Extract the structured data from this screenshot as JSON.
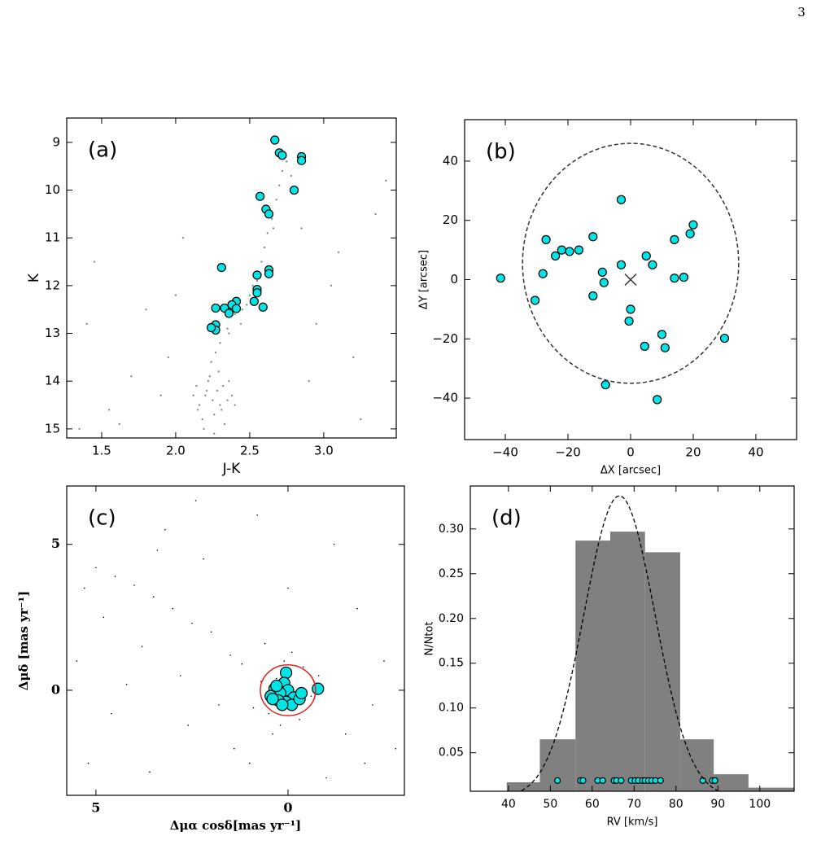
{
  "page_number": "3",
  "chart_data": [
    {
      "type": "scatter",
      "panel_label": "(a)",
      "xlabel": "J-K",
      "ylabel": "K",
      "xlim": [
        1.264,
        3.49
      ],
      "ylim": [
        15.19,
        8.49
      ],
      "xticks": [
        1.5,
        {
          "value": 2.0,
          "label": "2.0"
        },
        2.5,
        {
          "value": 3.0,
          "label": "3.0"
        }
      ],
      "yticks": [
        9,
        10,
        11,
        12,
        13,
        14,
        15
      ],
      "series": [
        {
          "color": "#8a8a8a",
          "x": [
            2.25,
            2.2,
            2.3,
            2.28,
            2.15,
            2.35,
            2.22,
            2.18,
            2.32,
            2.26,
            2.4,
            2.12,
            2.24,
            2.29,
            2.19,
            2.33,
            2.27,
            2.21,
            2.38,
            2.16,
            2.23,
            2.31,
            2.36,
            2.26,
            2.14,
            2.3,
            2.35,
            2.4,
            2.45,
            2.5,
            2.55,
            2.58,
            2.6,
            2.62,
            2.65,
            2.68,
            2.7,
            2.72,
            2.75,
            2.78,
            2.66,
            2.52,
            2.44,
            2.48,
            2.36,
            1.35,
            1.45,
            1.62,
            1.8,
            1.95,
            2.05,
            3.05,
            3.2,
            3.35,
            3.42,
            2.9,
            2.95,
            1.7,
            1.55,
            3.1,
            2.0,
            1.9,
            3.25,
            2.85,
            1.4
          ],
          "values": [
            14.4,
            14.3,
            14.5,
            14.2,
            14.6,
            14.4,
            14.0,
            14.8,
            14.1,
            14.7,
            14.5,
            14.3,
            13.6,
            13.8,
            15.0,
            14.9,
            13.4,
            14.2,
            14.3,
            14.5,
            13.9,
            14.6,
            14.0,
            15.1,
            14.1,
            13.2,
            12.9,
            12.6,
            12.5,
            12.2,
            11.9,
            11.5,
            11.2,
            10.9,
            10.6,
            10.2,
            9.9,
            9.6,
            9.4,
            9.7,
            10.8,
            12.0,
            12.8,
            12.4,
            13.0,
            15.0,
            11.5,
            14.9,
            12.5,
            13.5,
            11.0,
            12.0,
            13.5,
            10.5,
            9.8,
            14.0,
            12.8,
            13.9,
            14.6,
            11.3,
            12.2,
            14.3,
            14.8,
            10.8,
            12.8
          ]
        },
        {
          "color": "#00e5e5",
          "x": [
            2.67,
            2.7,
            2.72,
            2.85,
            2.85,
            2.8,
            2.57,
            2.61,
            2.63,
            2.31,
            2.63,
            2.63,
            2.55,
            2.55,
            2.55,
            2.53,
            2.59,
            2.41,
            2.38,
            2.41,
            2.33,
            2.36,
            2.27,
            2.27,
            2.27,
            2.24
          ],
          "values": [
            8.95,
            9.22,
            9.27,
            9.3,
            9.38,
            10.0,
            10.13,
            10.4,
            10.5,
            11.62,
            11.67,
            11.75,
            11.78,
            12.08,
            12.15,
            12.33,
            12.45,
            12.33,
            12.4,
            12.48,
            12.47,
            12.58,
            12.47,
            12.82,
            12.93,
            12.88
          ]
        }
      ]
    },
    {
      "type": "scatter",
      "panel_label": "(b)",
      "xlabel": "ΔX [arcsec]",
      "ylabel": "ΔY [arcsec]",
      "xlim": [
        -53,
        53
      ],
      "ylim": [
        -54,
        54
      ],
      "xticks": [
        {
          "value": -40,
          "label": "−40"
        },
        {
          "value": -20,
          "label": "−20"
        },
        0,
        20,
        40
      ],
      "yticks": [
        {
          "value": -40,
          "label": "−40"
        },
        {
          "value": -20,
          "label": "−20"
        },
        0,
        20,
        40
      ],
      "ellipse": {
        "center": [
          0,
          5.5
        ],
        "radius": [
          34.5,
          40.5
        ],
        "color": "#333333"
      },
      "cross": [
        0,
        0
      ],
      "series": [
        {
          "color": "#00e5e5",
          "x": [
            -41.5,
            -30.5,
            -27,
            -28,
            -24,
            -22,
            -19.5,
            -16.5,
            -12,
            -9,
            -8.5,
            -12,
            -8,
            -3,
            -3,
            0,
            -0.5,
            5,
            7,
            4.5,
            10,
            11,
            14,
            14,
            17,
            19,
            20,
            30,
            8.5
          ],
          "values": [
            0.5,
            -7,
            13.5,
            2,
            8,
            10,
            9.5,
            10,
            14.5,
            2.5,
            -1,
            -5.5,
            -35.5,
            27,
            5,
            -10,
            -14,
            8,
            5,
            -22.5,
            -18.5,
            -23,
            13.5,
            0.5,
            0.8,
            15.5,
            18.5,
            -19.8,
            -40.5
          ]
        }
      ]
    },
    {
      "type": "scatter",
      "panel_label": "(c)",
      "xlabel": "Δμα cosδ[mas yr⁻¹]",
      "ylabel": "Δμδ [mas yr⁻¹]",
      "xlim": [
        5.76,
        -3.03
      ],
      "ylim": [
        -3.6,
        7.0
      ],
      "xticks": [
        5,
        0
      ],
      "yticks": [
        5,
        0
      ],
      "ellipse": {
        "center": [
          0.0,
          0.0
        ],
        "radius": [
          0.72,
          0.87
        ],
        "color": "#e02020"
      },
      "series": [
        {
          "color": "#000000",
          "x": [
            0.3,
            -0.2,
            0.5,
            -0.4,
            0.1,
            0.7,
            -0.6,
            0.9,
            0.2,
            -0.1,
            1.2,
            0.6,
            -0.8,
            1.5,
            0.4,
            -0.3,
            2.0,
            2.5,
            3.0,
            3.5,
            4.0,
            4.5,
            5.0,
            5.3,
            1.8,
            2.8,
            3.8,
            4.8,
            -1.5,
            -2.0,
            -2.5,
            -1.0,
            1.0,
            0.0,
            2.2,
            3.2,
            4.2,
            5.5,
            -2.8,
            -1.8,
            1.4,
            2.6,
            3.6,
            4.6,
            0.8,
            -1.2,
            -2.2,
            5.2,
            3.4,
            2.4
          ],
          "values": [
            0.4,
            -0.5,
            -0.8,
            0.8,
            1.0,
            0.3,
            -0.2,
            -0.6,
            -1.2,
            1.3,
            0.9,
            1.6,
            0.5,
            1.2,
            -1.5,
            -1.0,
            2.0,
            2.3,
            2.8,
            3.2,
            3.6,
            3.9,
            4.2,
            3.5,
            -0.5,
            0.5,
            1.5,
            2.5,
            -1.5,
            -2.5,
            1.0,
            -3.0,
            -2.5,
            3.5,
            4.5,
            5.5,
            0.2,
            1.0,
            -2.0,
            2.8,
            -2.0,
            -1.2,
            -2.8,
            -0.8,
            6.0,
            5.0,
            -0.5,
            -2.5,
            4.8,
            6.5
          ]
        },
        {
          "color": "#00e5e5",
          "x": [
            0.05,
            -0.78,
            0.1,
            0.25,
            0.0,
            0.35,
            0.2,
            0.45,
            -0.15,
            0.05,
            -0.1,
            0.25,
            0.4,
            -0.3,
            0.3,
            0.15,
            -0.35
          ],
          "values": [
            0.6,
            0.05,
            0.25,
            0.0,
            0.0,
            0.05,
            -0.1,
            -0.2,
            -0.25,
            -0.4,
            -0.5,
            -0.35,
            -0.3,
            -0.3,
            0.15,
            -0.5,
            -0.1
          ]
        }
      ]
    },
    {
      "type": "histogram",
      "panel_label": "(d)",
      "xlabel": "RV [km/s]",
      "ylabel": "N/Ntot",
      "xlim": [
        30.9,
        108.2
      ],
      "ylim": [
        0.007,
        0.348
      ],
      "xticks": [
        40,
        50,
        60,
        70,
        80,
        90,
        100
      ],
      "yticks": [
        0.05,
        {
          "value": 0.1,
          "label": "0.10"
        },
        0.15,
        {
          "value": 0.2,
          "label": "0.20"
        },
        0.25,
        {
          "value": 0.3,
          "label": "0.30"
        }
      ],
      "bins": [
        39.6,
        47.5,
        56.0,
        64.3,
        72.6,
        81.0,
        89.0,
        97.3,
        108.2
      ],
      "values": [
        0.017,
        0.065,
        0.287,
        0.297,
        0.274,
        0.065,
        0.026,
        0.011
      ],
      "color": "#808080",
      "gaussian": {
        "mean": 66.5,
        "sigma": 8.5,
        "peak": 0.337
      },
      "series": [
        {
          "color": "#00e5e5",
          "x": [
            51.7,
            57.2,
            57.8,
            61.3,
            62.5,
            65.2,
            65.8,
            66.9,
            69.3,
            70.2,
            71.0,
            72.0,
            72.6,
            73.4,
            74.2,
            75.1,
            76.3,
            86.4,
            88.7,
            89.3
          ],
          "values": [
            0.019,
            0.019,
            0.019,
            0.019,
            0.019,
            0.019,
            0.019,
            0.019,
            0.019,
            0.019,
            0.019,
            0.019,
            0.019,
            0.019,
            0.019,
            0.019,
            0.019,
            0.019,
            0.019,
            0.019
          ]
        }
      ]
    }
  ]
}
